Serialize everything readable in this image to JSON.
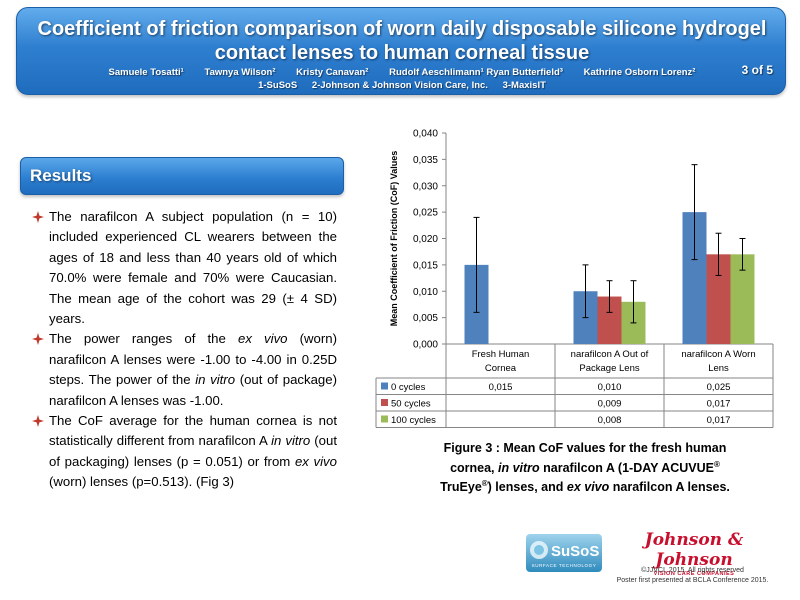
{
  "header": {
    "title_line1": "Coefficient of friction comparison of worn daily disposable silicone hydrogel",
    "title_line2": "contact lenses to human corneal tissue",
    "page_indicator": "3 of 5",
    "authors": [
      "Samuele Tosatti¹",
      "Tawnya Wilson²",
      "Kristy Canavan²",
      "Rudolf Aeschlimann¹ Ryan Butterfield³",
      "Kathrine Osborn Lorenz²"
    ],
    "affiliations": [
      "1-SuSoS",
      "2-Johnson & Johnson Vision Care, Inc.",
      "3-MaxisIT"
    ]
  },
  "results": {
    "heading": "Results",
    "bullets": [
      [
        "The narafilcon A subject population (n = 10) included experienced CL wearers between the ages of 18 and less than 40 years old of which 70.0% were female and 70% were Caucasian. The mean age of the cohort was 29 (± 4 SD) years."
      ],
      [
        "The power ranges of the ",
        "ex vivo",
        " (worn) narafilcon A lenses were -1.00 to -4.00 in 0.25D steps. The power of the ",
        "in vitro",
        " (out of package) narafilcon A lenses was -1.00."
      ],
      [
        "The CoF average for the human cornea is not statistically different from narafilcon A ",
        "in vitro",
        " (out of packaging) lenses (p = 0.051) or from ",
        "ex vivo",
        " (worn) lenses (p=0.513). (Fig 3)"
      ]
    ]
  },
  "caption": {
    "line1": "Figure 3 : Mean CoF values for the fresh human",
    "line2_a": "cornea, ",
    "line2_b": "in vitro",
    "line2_c": " narafilcon A (1-DAY ACUVUE",
    "reg": "®",
    "line3_a": "TruEye",
    "line3_b": ") lenses, and ",
    "line3_c": "ex vivo",
    "line3_d": " narafilcon A lenses."
  },
  "logos": {
    "susos_name": "SuSoS",
    "susos_tagline": "SURFACE TECHNOLOGY",
    "jj_name": "Johnson & Johnson",
    "jj_sub": "VISION CARE COMPANIES"
  },
  "copyright": {
    "line1": "©JJVCI, 2015. All rights reserved",
    "line2": "Poster first presented at BCLA Conference 2015."
  },
  "chart_data": {
    "type": "bar",
    "ylabel": "Mean Coefficient of Friction (CoF) Values",
    "ylim": [
      0,
      0.04
    ],
    "yticks": [
      "0,000",
      "0,005",
      "0,010",
      "0,015",
      "0,020",
      "0,025",
      "0,030",
      "0,035",
      "0,040"
    ],
    "categories": [
      [
        "Fresh Human",
        "Cornea"
      ],
      [
        "narafilcon A Out of",
        "Package Lens"
      ],
      [
        "narafilcon A Worn",
        "Lens"
      ]
    ],
    "series": [
      {
        "name": "0 cycles",
        "color": "#4f81bd",
        "values": [
          0.015,
          0.01,
          0.025
        ],
        "labels": [
          "0,015",
          "0,010",
          "0,025"
        ],
        "err": [
          0.009,
          0.005,
          0.009
        ]
      },
      {
        "name": "50 cycles",
        "color": "#c0504d",
        "values": [
          null,
          0.009,
          0.017
        ],
        "labels": [
          "",
          "0,009",
          "0,017"
        ],
        "err": [
          null,
          0.003,
          0.004
        ]
      },
      {
        "name": "100 cycles",
        "color": "#9bbb59",
        "values": [
          null,
          0.008,
          0.017
        ],
        "labels": [
          "",
          "0,008",
          "0,017"
        ],
        "err": [
          null,
          0.004,
          0.003
        ]
      }
    ],
    "grid": false,
    "legend": "data-table-below"
  }
}
